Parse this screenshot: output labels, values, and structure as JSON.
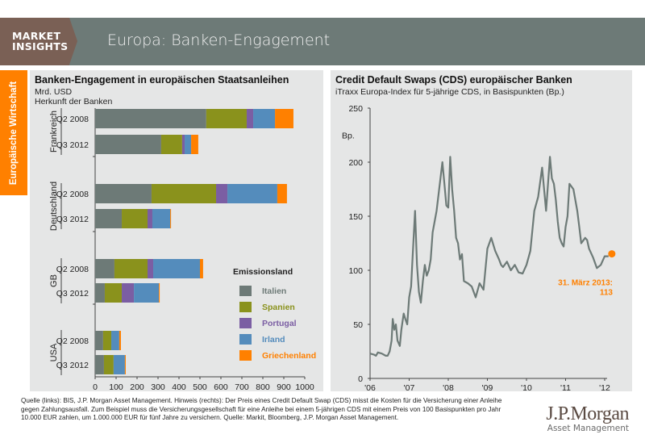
{
  "header": {
    "brand_line1": "MARKET",
    "brand_line2": "INSIGHTS",
    "title": "Europa: Banken-Engagement"
  },
  "side_tab": {
    "label": "Europäische Wirtschaft"
  },
  "left_panel": {
    "title": "Banken-Engagement in europäischen Staatsanleihen",
    "subtitle1": "Mrd. USD",
    "subtitle2": "Herkunft der Banken",
    "legend_title": "Emissionsland"
  },
  "right_panel": {
    "title": "Credit Default Swaps (CDS) europäischer Banken",
    "subtitle": "iTraxx Europa-Index für 5-jährige CDS, in Basispunkten (Bp.)",
    "unit_label": "Bp.",
    "annotation_line1": "31. März 2013:",
    "annotation_line2": "113"
  },
  "footnote": "Quelle (links): BIS, J.P. Morgan Asset Management. Hinweis (rechts): Der Preis eines Credit Default Swap (CDS) misst die Kosten für die Versicherung einer Anleihe gegen Zahlungsausfall. Zum Beispiel muss die Versicherungsgesellschaft für eine Anleihe bei einem 5-jährigen CDS mit einem Preis von 100 Basispunkten pro Jahr 10.000 EUR zahlen, um 1.000.000 EUR für fünf Jahre zu versichern. Quelle: Markit, Bloomberg, J.P. Morgan Asset Management.",
  "logo": {
    "main": "J.P.Morgan",
    "sub": "Asset Management"
  },
  "chart_data": [
    {
      "type": "bar",
      "orientation": "horizontal",
      "stacked": true,
      "title": "Banken-Engagement in europäischen Staatsanleihen",
      "xlabel": "Mrd. USD",
      "ylabel": "Herkunft der Banken",
      "xlim": [
        0,
        1000
      ],
      "xticks": [
        0,
        100,
        200,
        300,
        400,
        500,
        600,
        700,
        800,
        900,
        1000
      ],
      "groups": [
        {
          "name": "Frankreich",
          "categories": [
            "Q2 2008",
            "Q3 2012"
          ]
        },
        {
          "name": "Deutschland",
          "categories": [
            "Q2 2008",
            "Q3 2012"
          ]
        },
        {
          "name": "GB",
          "categories": [
            "Q2 2008",
            "Q3 2012"
          ]
        },
        {
          "name": "USA",
          "categories": [
            "Q2 2008",
            "Q3 2012"
          ]
        }
      ],
      "legend_title": "Emissionsland",
      "legend_position": "bottom-right",
      "series": [
        {
          "name": "Italien",
          "color": "#6d7a77",
          "values": [
            530,
            315,
            269,
            127,
            92,
            46,
            38,
            42
          ]
        },
        {
          "name": "Spanien",
          "color": "#8a921c",
          "values": [
            193,
            100,
            308,
            123,
            158,
            81,
            39,
            46
          ]
        },
        {
          "name": "Portugal",
          "color": "#7b5ea3",
          "values": [
            31,
            12,
            54,
            23,
            27,
            58,
            0,
            0
          ]
        },
        {
          "name": "Irland",
          "color": "#548cbc",
          "values": [
            104,
            31,
            238,
            85,
            223,
            119,
            38,
            54
          ]
        },
        {
          "name": "Griechenland",
          "color": "#ff8000",
          "values": [
            88,
            34,
            46,
            4,
            15,
            4,
            8,
            4
          ]
        }
      ]
    },
    {
      "type": "line",
      "title": "Credit Default Swaps (CDS) europäischer Banken",
      "subtitle": "iTraxx Europa-Index für 5-jährige CDS, in Basispunkten (Bp.)",
      "ylabel": "Bp.",
      "ylim": [
        0,
        250
      ],
      "yticks": [
        0,
        50,
        100,
        150,
        200,
        250
      ],
      "xlim": [
        2006.0,
        2012.0
      ],
      "xticks": [
        "'06",
        "'07",
        "'08",
        "'09",
        "'10",
        "'11",
        "'12"
      ],
      "line_color": "#6d7a77",
      "series": [
        {
          "name": "iTraxx Europa CDS",
          "x": [
            2006.0,
            2006.1,
            2006.15,
            2006.2,
            2006.3,
            2006.4,
            2006.45,
            2006.5,
            2006.55,
            2006.58,
            2006.62,
            2006.66,
            2006.7,
            2006.76,
            2006.8,
            2006.86,
            2006.9,
            2006.95,
            2007.0,
            2007.05,
            2007.1,
            2007.15,
            2007.2,
            2007.25,
            2007.3,
            2007.35,
            2007.4,
            2007.45,
            2007.5,
            2007.55,
            2007.6,
            2007.7,
            2007.8,
            2007.85,
            2007.9,
            2007.95,
            2008.0,
            2008.05,
            2008.1,
            2008.15,
            2008.2,
            2008.25,
            2008.3,
            2008.35,
            2008.4,
            2008.5,
            2008.6,
            2008.7,
            2008.8,
            2008.9,
            2009.0,
            2009.1,
            2009.2,
            2009.3,
            2009.35,
            2009.4,
            2009.5,
            2009.6,
            2009.7,
            2009.8,
            2009.9,
            2010.0,
            2010.1,
            2010.2,
            2010.3,
            2010.4,
            2010.5,
            2010.6,
            2010.65,
            2010.7,
            2010.75,
            2010.8,
            2010.85,
            2010.9,
            2010.95,
            2011.0,
            2011.05,
            2011.1,
            2011.2,
            2011.3,
            2011.35,
            2011.4,
            2011.5,
            2011.55,
            2011.6,
            2011.7,
            2011.8,
            2011.9,
            2012.0,
            2012.05,
            2012.1
          ],
          "y": [
            23,
            22,
            21,
            24,
            23,
            21,
            21,
            25,
            35,
            55,
            45,
            50,
            35,
            30,
            45,
            60,
            55,
            50,
            75,
            85,
            120,
            155,
            105,
            80,
            70,
            90,
            105,
            95,
            100,
            110,
            135,
            155,
            185,
            200,
            180,
            160,
            158,
            205,
            175,
            155,
            130,
            125,
            110,
            115,
            90,
            88,
            85,
            75,
            88,
            82,
            120,
            130,
            118,
            110,
            105,
            103,
            108,
            100,
            105,
            98,
            97,
            105,
            118,
            155,
            168,
            195,
            155,
            205,
            185,
            180,
            165,
            145,
            130,
            125,
            122,
            140,
            150,
            180,
            175,
            155,
            140,
            125,
            130,
            128,
            120,
            112,
            102,
            105,
            113,
            113,
            113
          ]
        }
      ],
      "annotation": {
        "label": "31. März 2013: 113",
        "x": 2012.1,
        "y": 113,
        "color": "#ff8000"
      }
    }
  ]
}
